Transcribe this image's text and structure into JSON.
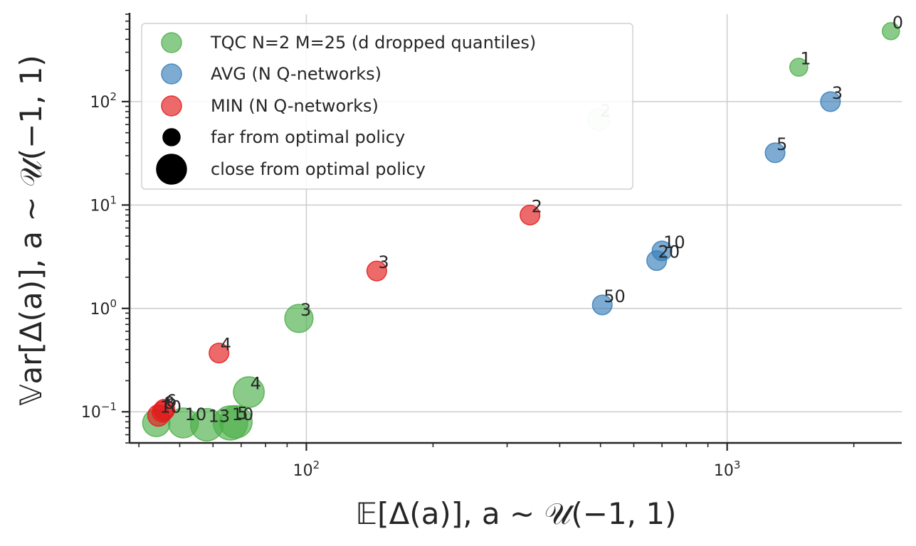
{
  "chart_data": {
    "type": "scatter",
    "xlabel": "𝔼[Δ(a)], a ∼ 𝒰(−1, 1)",
    "ylabel": "𝕍ar[Δ(a)], a ∼ 𝒰(−1, 1)",
    "xscale": "log",
    "yscale": "log",
    "xlim": [
      38,
      2600
    ],
    "ylim": [
      0.05,
      700
    ],
    "grid": true,
    "legend_position": "upper-left",
    "x_ticks": [
      {
        "base": "10",
        "exp": "2",
        "value": 100
      },
      {
        "base": "10",
        "exp": "3",
        "value": 1000
      }
    ],
    "y_ticks": [
      {
        "base": "10",
        "exp": "−1",
        "value": 0.1
      },
      {
        "base": "10",
        "exp": "0",
        "value": 1
      },
      {
        "base": "10",
        "exp": "1",
        "value": 10
      },
      {
        "base": "10",
        "exp": "2",
        "value": 100
      }
    ],
    "legend": [
      {
        "label": "TQC N=2 M=25 (d dropped quantiles)",
        "color": "#4daf4a",
        "marker": "color"
      },
      {
        "label": "AVG (N Q-networks)",
        "color": "#377eb8",
        "marker": "color"
      },
      {
        "label": "MIN (N Q-networks)",
        "color": "#e41a1c",
        "marker": "color"
      },
      {
        "label": "far from optimal policy",
        "color": "#000000",
        "marker": "small"
      },
      {
        "label": "close from optimal policy",
        "color": "#000000",
        "marker": "large"
      }
    ],
    "series": [
      {
        "group": "TQC",
        "color": "#4daf4a",
        "points": [
          {
            "label": "0",
            "x": 2450,
            "y": 480,
            "size": 0.0
          },
          {
            "label": "1",
            "x": 1480,
            "y": 215,
            "size": 0.05
          },
          {
            "label": "2",
            "x": 495,
            "y": 67,
            "size": 0.3,
            "faded": true
          },
          {
            "label": "3",
            "x": 96,
            "y": 0.8,
            "size": 0.65
          },
          {
            "label": "4",
            "x": 73,
            "y": 0.155,
            "size": 0.8
          },
          {
            "label": "5",
            "x": 68,
            "y": 0.08,
            "size": 0.9
          },
          {
            "label": "10",
            "x": 66,
            "y": 0.078,
            "size": 1.0
          },
          {
            "label": "13",
            "x": 58,
            "y": 0.075,
            "size": 0.9
          },
          {
            "label": "10",
            "x": 51,
            "y": 0.078,
            "size": 0.75
          },
          {
            "label": "",
            "x": 44,
            "y": 0.078,
            "size": 0.6
          }
        ]
      },
      {
        "group": "AVG",
        "color": "#377eb8",
        "points": [
          {
            "label": "3",
            "x": 1760,
            "y": 100,
            "size": 0.15
          },
          {
            "label": "5",
            "x": 1300,
            "y": 32,
            "size": 0.15
          },
          {
            "label": "10",
            "x": 700,
            "y": 3.6,
            "size": 0.15
          },
          {
            "label": "20",
            "x": 680,
            "y": 2.9,
            "size": 0.15
          },
          {
            "label": "50",
            "x": 505,
            "y": 1.08,
            "size": 0.15
          }
        ]
      },
      {
        "group": "MIN",
        "color": "#e41a1c",
        "points": [
          {
            "label": "2",
            "x": 340,
            "y": 8.0,
            "size": 0.15
          },
          {
            "label": "3",
            "x": 147,
            "y": 2.3,
            "size": 0.15
          },
          {
            "label": "4",
            "x": 62,
            "y": 0.37,
            "size": 0.15
          },
          {
            "label": "6",
            "x": 46,
            "y": 0.105,
            "size": 0.2
          },
          {
            "label": "8",
            "x": 45.5,
            "y": 0.1,
            "size": 0.2
          },
          {
            "label": "10",
            "x": 44.5,
            "y": 0.092,
            "size": 0.25
          }
        ]
      }
    ]
  }
}
